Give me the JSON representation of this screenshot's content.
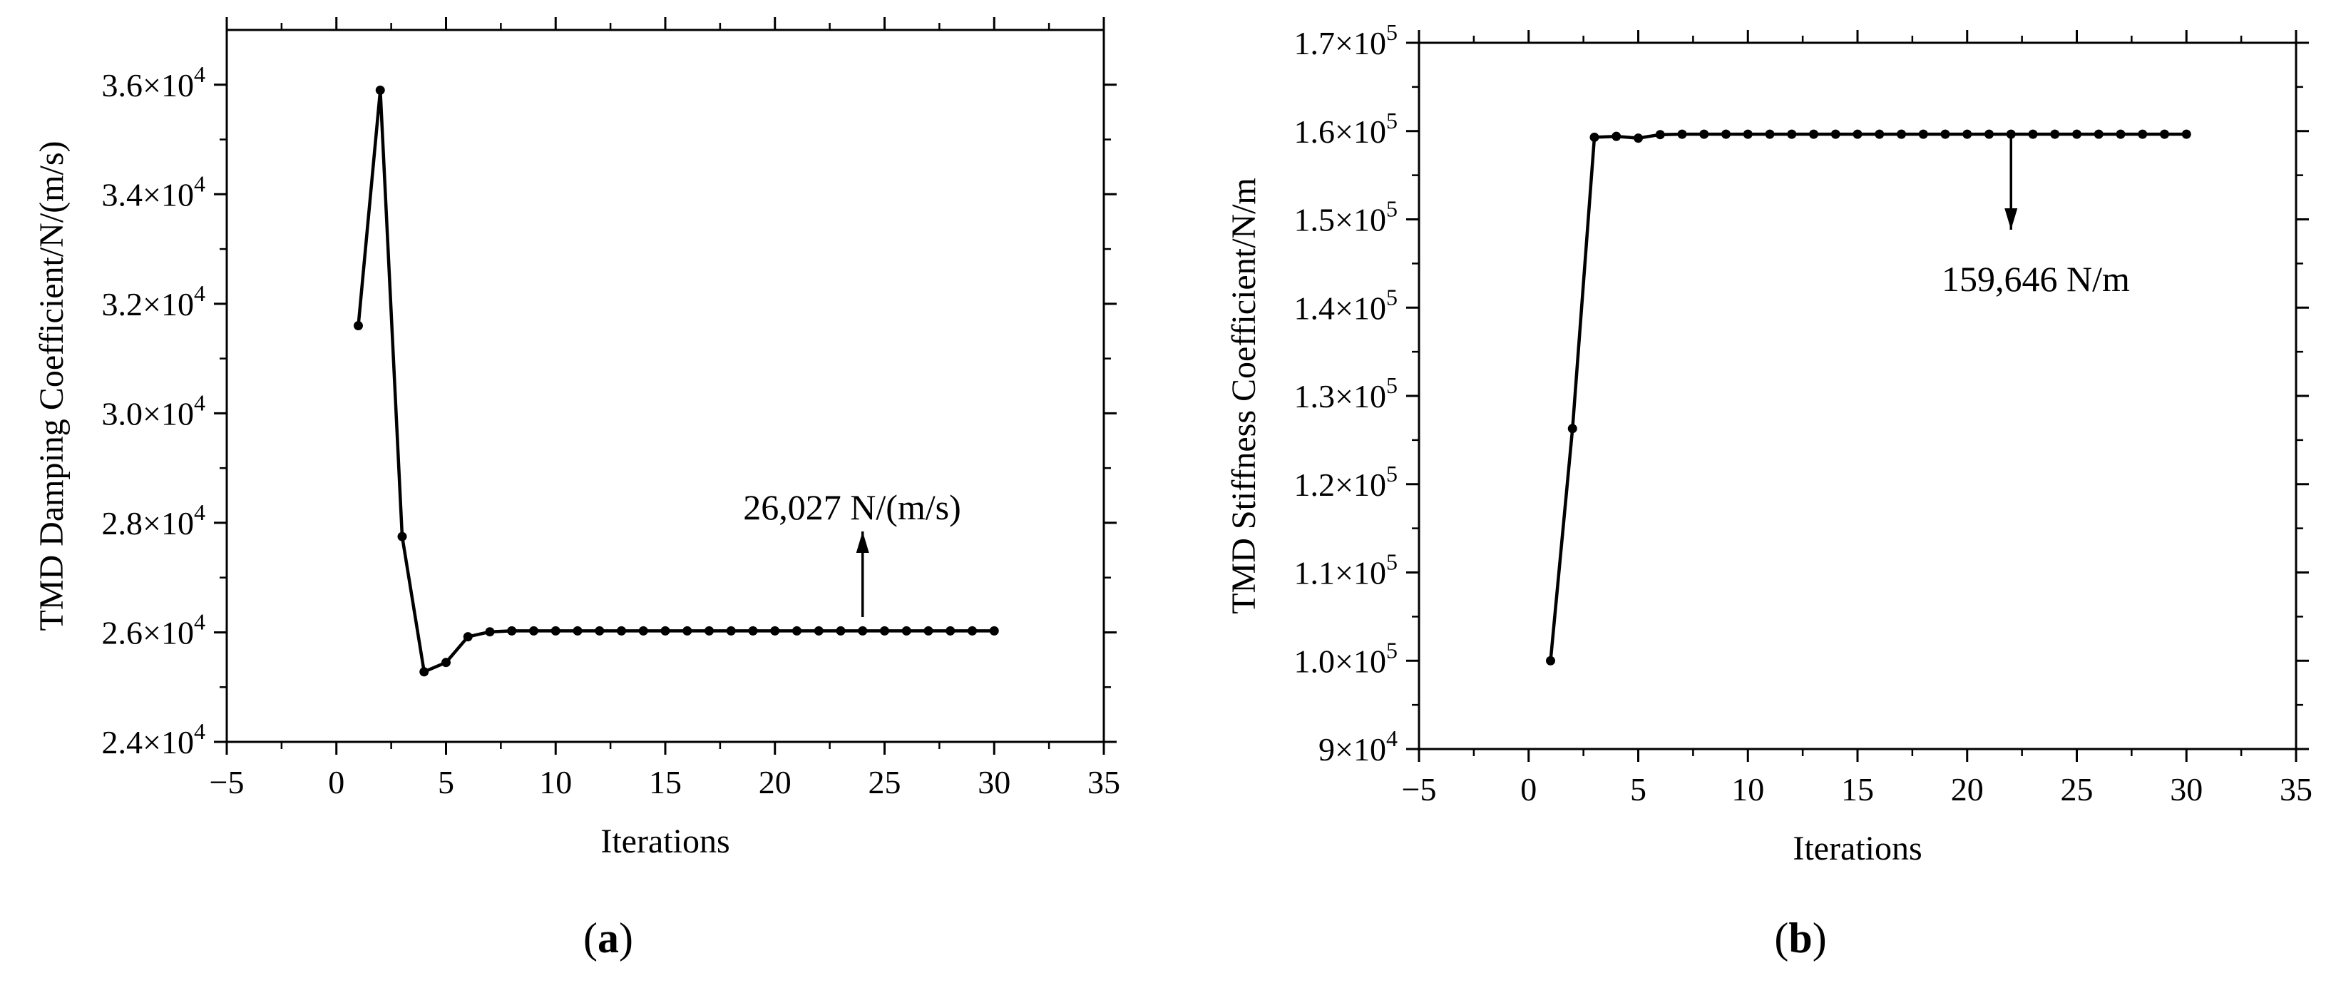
{
  "chart_data": [
    {
      "type": "line",
      "panel_label": "(a)",
      "title": "",
      "xlabel": "Iterations",
      "ylabel": "TMD Damping Coefficient/N/(m/s)",
      "xlim": [
        -5,
        35
      ],
      "ylim": [
        24000,
        37000
      ],
      "x_ticks": [
        -5,
        0,
        5,
        10,
        15,
        20,
        25,
        30,
        35
      ],
      "x_tick_labels": [
        "−5",
        "0",
        "5",
        "10",
        "15",
        "20",
        "25",
        "30",
        "35"
      ],
      "y_ticks": [
        24000,
        26000,
        28000,
        30000,
        32000,
        34000,
        36000
      ],
      "y_tick_mantissas": [
        "2.4×10",
        "2.6×10",
        "2.8×10",
        "3.0×10",
        "3.2×10",
        "3.4×10",
        "3.6×10"
      ],
      "y_tick_exponent": "4",
      "grid": false,
      "series": [
        {
          "x": [
            1,
            2,
            3,
            4,
            5,
            6,
            7,
            8,
            9,
            10,
            11,
            12,
            13,
            14,
            15,
            16,
            17,
            18,
            19,
            20,
            21,
            22,
            23,
            24,
            25,
            26,
            27,
            28,
            29,
            30
          ],
          "values": [
            31600,
            35900,
            27750,
            25280,
            25450,
            25920,
            26010,
            26027,
            26027,
            26027,
            26027,
            26027,
            26027,
            26027,
            26027,
            26027,
            26027,
            26027,
            26027,
            26027,
            26027,
            26027,
            26027,
            26027,
            26027,
            26027,
            26027,
            26027,
            26027,
            26027
          ]
        }
      ],
      "annotation": {
        "text": "26,027 N/(m/s)",
        "x": 24,
        "y": 26027,
        "arrow": "up"
      }
    },
    {
      "type": "line",
      "panel_label": "(b)",
      "title": "",
      "xlabel": "Iterations",
      "ylabel": "TMD Stiffness Coefficient/N/m",
      "xlim": [
        -5,
        35
      ],
      "ylim": [
        90000,
        170000
      ],
      "x_ticks": [
        -5,
        0,
        5,
        10,
        15,
        20,
        25,
        30,
        35
      ],
      "x_tick_labels": [
        "−5",
        "0",
        "5",
        "10",
        "15",
        "20",
        "25",
        "30",
        "35"
      ],
      "y_ticks": [
        90000,
        100000,
        110000,
        120000,
        130000,
        140000,
        150000,
        160000,
        170000
      ],
      "y_tick_mantissas": [
        "9×10",
        "1.0×10",
        "1.1×10",
        "1.2×10",
        "1.3×10",
        "1.4×10",
        "1.5×10",
        "1.6×10",
        "1.7×10"
      ],
      "y_tick_exponents": [
        "4",
        "5",
        "5",
        "5",
        "5",
        "5",
        "5",
        "5",
        "5"
      ],
      "grid": false,
      "series": [
        {
          "x": [
            1,
            2,
            3,
            4,
            5,
            6,
            7,
            8,
            9,
            10,
            11,
            12,
            13,
            14,
            15,
            16,
            17,
            18,
            19,
            20,
            21,
            22,
            23,
            24,
            25,
            26,
            27,
            28,
            29,
            30
          ],
          "values": [
            100000,
            126300,
            159300,
            159400,
            159200,
            159600,
            159646,
            159646,
            159646,
            159646,
            159646,
            159646,
            159646,
            159646,
            159646,
            159646,
            159646,
            159646,
            159646,
            159646,
            159646,
            159646,
            159646,
            159646,
            159646,
            159646,
            159646,
            159646,
            159646,
            159646
          ]
        }
      ],
      "annotation": {
        "text": "159,646 N/m",
        "x": 22,
        "y": 159646,
        "arrow": "down"
      }
    }
  ]
}
